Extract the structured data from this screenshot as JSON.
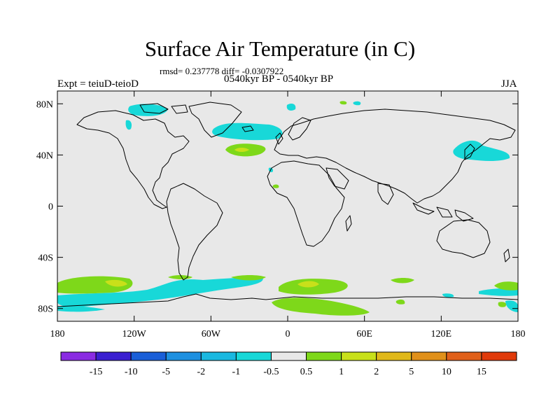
{
  "header": {
    "title": "Surface Air Temperature (in C)",
    "stats": "rmsd= 0.237778 diff= -0.0307922",
    "expt": "Expt = teiuD-teioD",
    "period": "0540kyr BP - 0540kyr BP",
    "season": "JJA"
  },
  "map": {
    "projection": "cylindrical-equidistant",
    "lon_range": [
      -180,
      180
    ],
    "lat_range": [
      -90,
      90
    ],
    "background_color": "#e8e8e8",
    "x_ticks": [
      {
        "value": -180,
        "label": "180"
      },
      {
        "value": -120,
        "label": "120W"
      },
      {
        "value": -60,
        "label": "60W"
      },
      {
        "value": 0,
        "label": "0"
      },
      {
        "value": 60,
        "label": "60E"
      },
      {
        "value": 120,
        "label": "120E"
      },
      {
        "value": 180,
        "label": "180"
      }
    ],
    "y_ticks": [
      {
        "value": 80,
        "label": "80N"
      },
      {
        "value": 40,
        "label": "40N"
      },
      {
        "value": 0,
        "label": "0"
      },
      {
        "value": -40,
        "label": "40S"
      },
      {
        "value": -80,
        "label": "80S"
      }
    ]
  },
  "colorbar": {
    "colors": [
      "#8a2be2",
      "#3a1fd0",
      "#1a5fd8",
      "#1e90e0",
      "#1ab8e0",
      "#18d8d8",
      "#e8e8e8",
      "#7ed81a",
      "#c8e01a",
      "#e0b81a",
      "#e0901a",
      "#e0601a",
      "#e03a0a"
    ],
    "labels": [
      "-15",
      "-10",
      "-5",
      "-2",
      "-1",
      "-0.5",
      "0.5",
      "1",
      "2",
      "5",
      "10",
      "15"
    ]
  }
}
